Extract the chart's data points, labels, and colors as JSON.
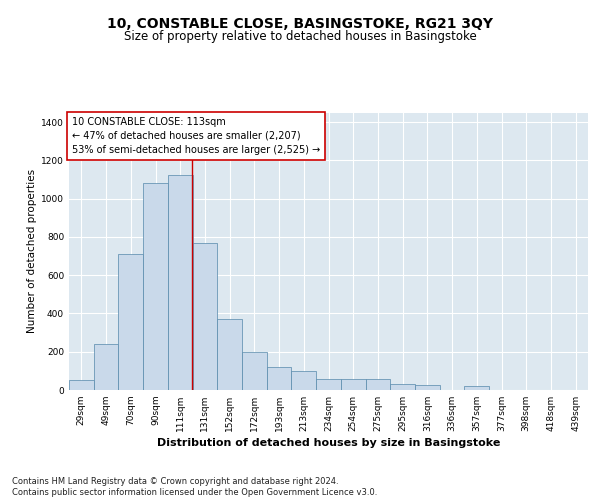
{
  "title1": "10, CONSTABLE CLOSE, BASINGSTOKE, RG21 3QY",
  "title2": "Size of property relative to detached houses in Basingstoke",
  "xlabel": "Distribution of detached houses by size in Basingstoke",
  "ylabel": "Number of detached properties",
  "footnote": "Contains HM Land Registry data © Crown copyright and database right 2024.\nContains public sector information licensed under the Open Government Licence v3.0.",
  "bar_color": "#c9d9ea",
  "bar_edge_color": "#5588aa",
  "background_color": "#dde8f0",
  "annotation_box_facecolor": "#ffffff",
  "annotation_box_edge": "#cc0000",
  "vline_color": "#cc0000",
  "categories": [
    "29sqm",
    "49sqm",
    "70sqm",
    "90sqm",
    "111sqm",
    "131sqm",
    "152sqm",
    "172sqm",
    "193sqm",
    "213sqm",
    "234sqm",
    "254sqm",
    "275sqm",
    "295sqm",
    "316sqm",
    "336sqm",
    "357sqm",
    "377sqm",
    "398sqm",
    "418sqm",
    "439sqm"
  ],
  "values": [
    50,
    240,
    710,
    1080,
    1125,
    770,
    370,
    200,
    120,
    100,
    60,
    55,
    55,
    30,
    25,
    0,
    20,
    0,
    0,
    0,
    0
  ],
  "ylim": [
    0,
    1450
  ],
  "yticks": [
    0,
    200,
    400,
    600,
    800,
    1000,
    1200,
    1400
  ],
  "vline_position": 4.47,
  "annotation_text": "10 CONSTABLE CLOSE: 113sqm\n← 47% of detached houses are smaller (2,207)\n53% of semi-detached houses are larger (2,525) →",
  "title1_fontsize": 10,
  "title2_fontsize": 8.5,
  "xlabel_fontsize": 8,
  "ylabel_fontsize": 7.5,
  "tick_fontsize": 6.5,
  "annotation_fontsize": 7,
  "footnote_fontsize": 6
}
